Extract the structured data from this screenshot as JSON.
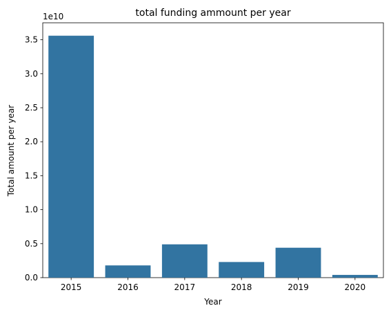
{
  "chart_data": {
    "type": "bar",
    "title": "total funding ammount per year",
    "xlabel": "Year",
    "ylabel": "Total amount per year",
    "offset_label": "1e10",
    "categories": [
      "2015",
      "2016",
      "2017",
      "2018",
      "2019",
      "2020"
    ],
    "values": [
      35600000000.0,
      1800000000.0,
      4900000000.0,
      2300000000.0,
      4400000000.0,
      400000000.0
    ],
    "ylim": [
      0,
      37500000000.0
    ],
    "yticks": [
      0,
      5000000000.0,
      10000000000.0,
      15000000000.0,
      20000000000.0,
      25000000000.0,
      30000000000.0,
      35000000000.0
    ],
    "ytick_labels": [
      "0.0",
      "0.5",
      "1.0",
      "1.5",
      "2.0",
      "2.5",
      "3.0",
      "3.5"
    ],
    "grid": false,
    "legend": "none",
    "colors": {
      "bar": "#3274a1",
      "axis": "#000000"
    }
  }
}
